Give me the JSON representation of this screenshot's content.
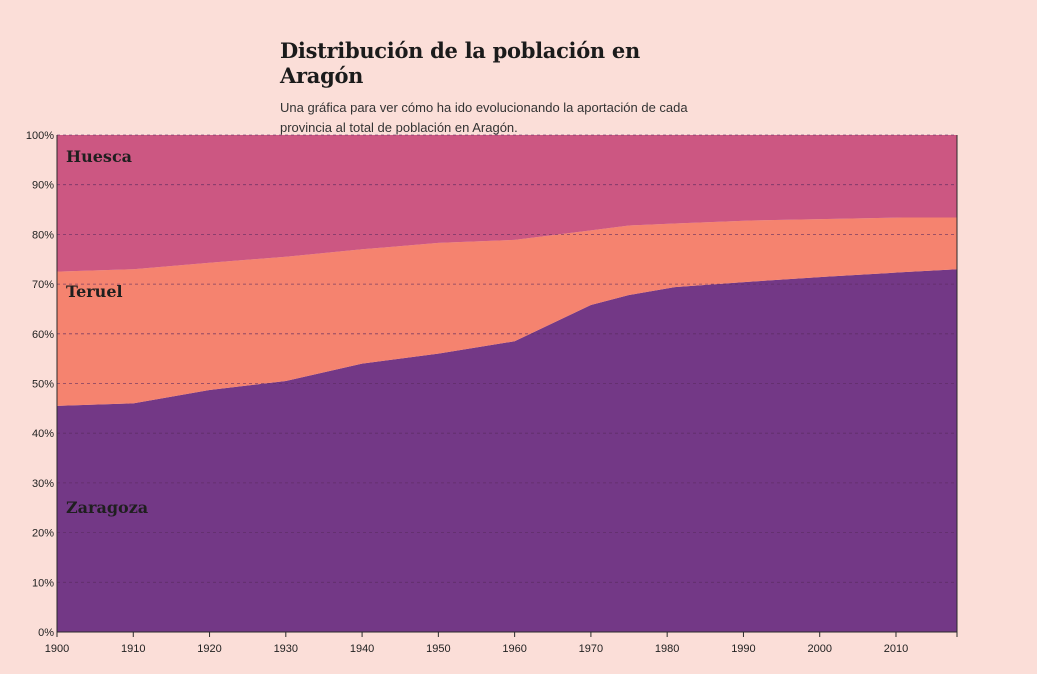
{
  "header": {
    "title": "Distribución de la población en Aragón",
    "subtitle": "Una gráfica para ver cómo ha ido evolucionando la aportación de cada provincia al total de población en Aragón."
  },
  "colors": {
    "background": "#fbded8",
    "zaragoza": "#733886",
    "teruel": "#f5836f",
    "huesca": "#cc5782",
    "grid": "#5a2a5e"
  },
  "chart_data": {
    "type": "area",
    "stacked": true,
    "normalized": true,
    "title": "Distribución de la población en Aragón",
    "x": [
      1900,
      1910,
      1920,
      1930,
      1940,
      1950,
      1960,
      1970,
      1975,
      1981,
      1991,
      2001,
      2011,
      2018
    ],
    "series": [
      {
        "name": "Zaragoza",
        "values": [
          45.5,
          46.0,
          48.7,
          50.5,
          54.0,
          56.0,
          58.5,
          65.8,
          67.8,
          69.4,
          70.5,
          71.5,
          72.4,
          73.0
        ]
      },
      {
        "name": "Teruel",
        "values": [
          27.0,
          27.0,
          25.6,
          25.0,
          23.0,
          22.3,
          20.4,
          15.0,
          14.0,
          12.8,
          12.3,
          11.6,
          11.0,
          10.4
        ]
      },
      {
        "name": "Huesca",
        "values": [
          27.5,
          27.0,
          25.7,
          24.5,
          23.0,
          21.7,
          21.1,
          19.2,
          18.2,
          17.8,
          17.2,
          16.9,
          16.6,
          16.6
        ]
      }
    ],
    "x_ticks": [
      "1900",
      "1910",
      "1920",
      "1930",
      "1940",
      "1950",
      "1960",
      "1970",
      "1980",
      "1990",
      "2000",
      "2010"
    ],
    "y_ticks": [
      "0%",
      "10%",
      "20%",
      "30%",
      "40%",
      "50%",
      "60%",
      "70%",
      "80%",
      "90%",
      "100%"
    ],
    "xlim": [
      1900,
      2018
    ],
    "ylim": [
      0,
      100
    ],
    "grid": "horizontal dashed",
    "xlabel": "",
    "ylabel": ""
  }
}
